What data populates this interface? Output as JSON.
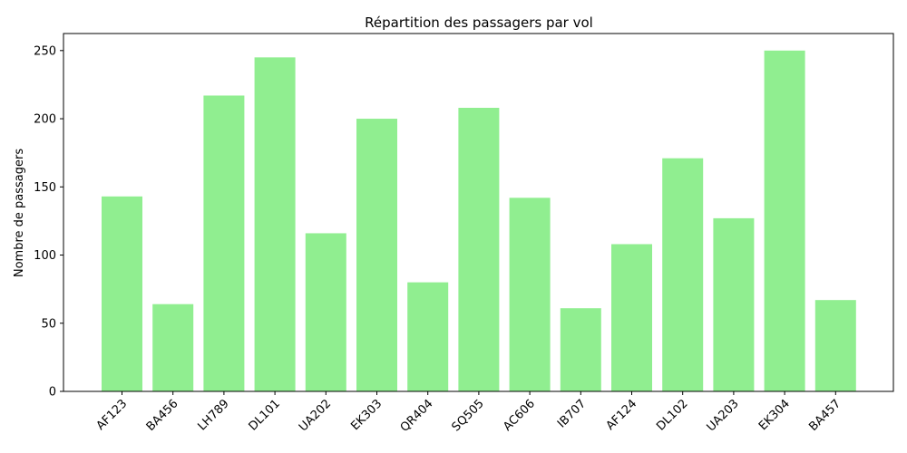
{
  "chart_data": {
    "type": "bar",
    "title": "Répartition des passagers par vol",
    "xlabel": "",
    "ylabel": "Nombre de passagers",
    "categories": [
      "AF123",
      "BA456",
      "LH789",
      "DL101",
      "UA202",
      "EK303",
      "QR404",
      "SQ505",
      "AC606",
      "IB707",
      "AF124",
      "DL102",
      "UA203",
      "EK304",
      "BA457"
    ],
    "values": [
      143,
      64,
      217,
      245,
      116,
      200,
      80,
      208,
      142,
      61,
      108,
      171,
      127,
      250,
      67
    ],
    "ylim": [
      0,
      262.5
    ],
    "yticks": [
      0,
      50,
      100,
      150,
      200,
      250
    ],
    "bar_color": "#90ee90",
    "grid": false,
    "legend": "none"
  }
}
